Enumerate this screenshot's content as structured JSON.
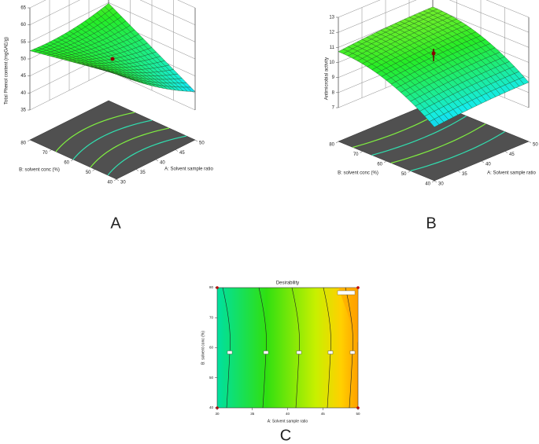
{
  "chart_data": [
    {
      "type": "surface",
      "panel": "A",
      "zlabel": "Total Phenol content  (mgGAE/g)",
      "xlabel": "A: Solvent sample ratio",
      "ylabel": "B: solvent conc (%)",
      "xlim": [
        30,
        50
      ],
      "xticks": [
        30,
        35,
        40,
        45,
        50
      ],
      "ylim": [
        40,
        80
      ],
      "yticks": [
        40,
        50,
        60,
        70,
        80
      ],
      "zlim": [
        35,
        65
      ],
      "zticks": [
        35,
        40,
        45,
        50,
        55,
        60,
        65
      ]
    },
    {
      "type": "surface",
      "panel": "B",
      "zlabel": "Antimicrobial activity",
      "xlabel": "A: Solvent sample ratio",
      "ylabel": "B: solvent conc (%)",
      "xlim": [
        30,
        50
      ],
      "xticks": [
        30,
        35,
        40,
        45,
        50
      ],
      "ylim": [
        40,
        80
      ],
      "yticks": [
        40,
        50,
        60,
        70,
        80
      ],
      "zlim": [
        7,
        13
      ],
      "zticks": [
        7,
        8,
        9,
        10,
        11,
        12,
        13
      ]
    },
    {
      "type": "contour",
      "panel": "C",
      "title": "Desirability",
      "xlabel": "A: Solvent sample ratio",
      "ylabel": "B: solvent conc (%)",
      "xlim": [
        30,
        50
      ],
      "xticks": [
        30,
        35,
        40,
        45,
        50
      ],
      "ylim": [
        40,
        80
      ],
      "yticks": [
        40,
        50,
        60,
        70,
        80
      ]
    }
  ]
}
